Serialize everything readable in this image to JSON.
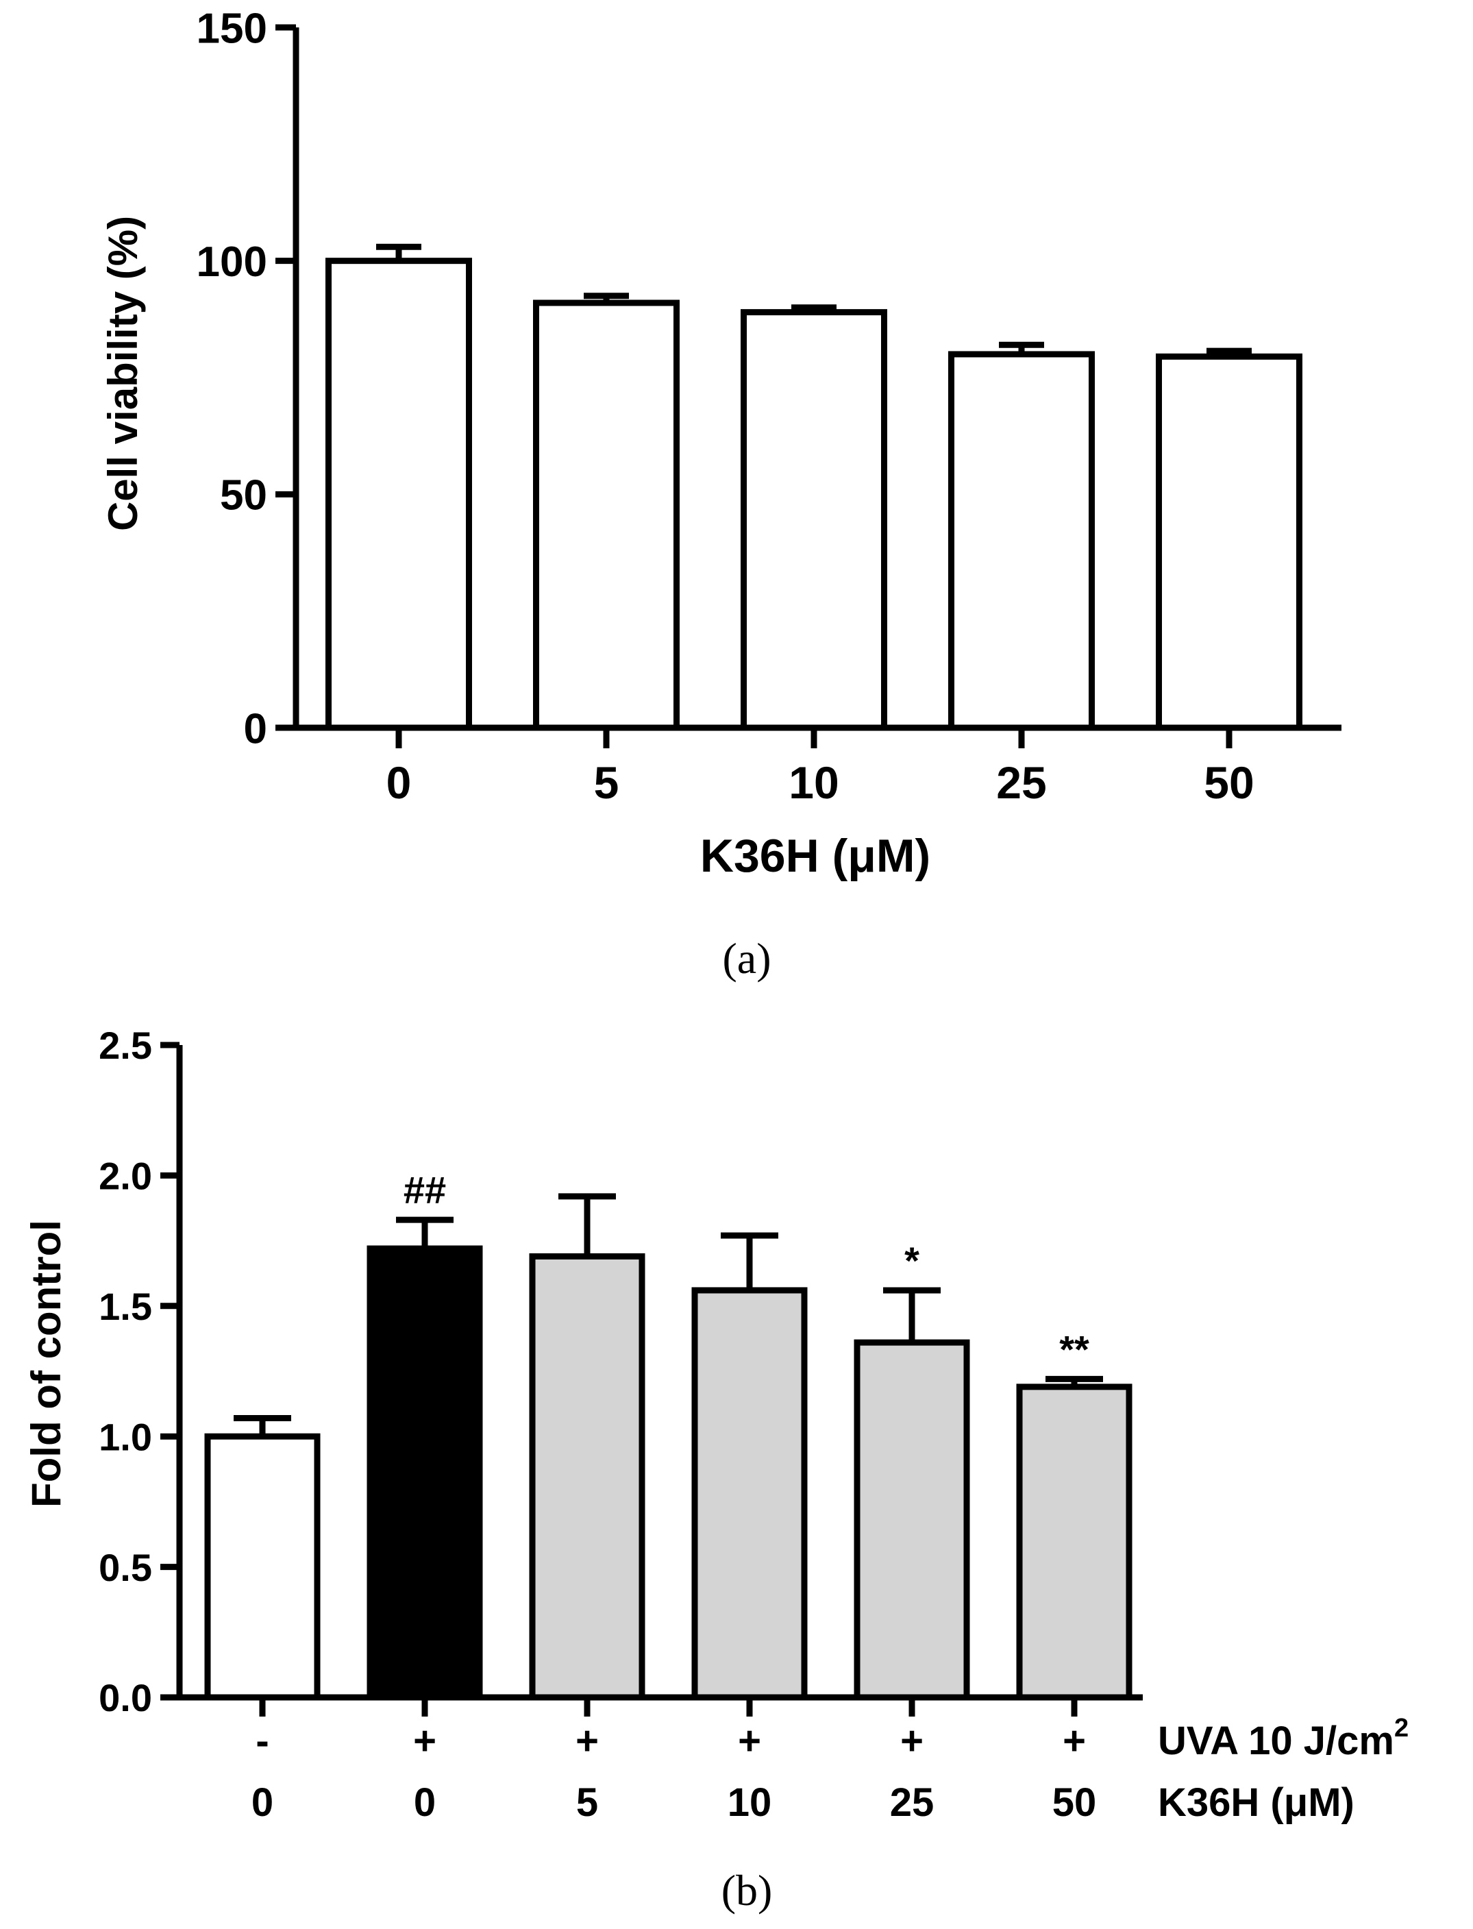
{
  "chart_data": [
    {
      "type": "bar",
      "panel_label": "(a)",
      "categories": [
        "0",
        "5",
        "10",
        "25",
        "50"
      ],
      "values": [
        100,
        91,
        89,
        80,
        79.5
      ],
      "errors": [
        3,
        1.5,
        1,
        2,
        1.2
      ],
      "ylabel": "Cell viability (%)",
      "xlabel": "K36H (μM)",
      "ylim": [
        0,
        150
      ],
      "yticks": [
        "0",
        "50",
        "100",
        "150"
      ],
      "grid": false,
      "bar_colors": [
        "#ffffff",
        "#ffffff",
        "#ffffff",
        "#ffffff",
        "#ffffff"
      ]
    },
    {
      "type": "bar",
      "panel_label": "(b)",
      "categories": [
        "0",
        "0",
        "5",
        "10",
        "25",
        "50"
      ],
      "uva_row": [
        "-",
        "+",
        "+",
        "+",
        "+",
        "+"
      ],
      "row_labels": {
        "uva": "UVA 10 J/cm",
        "uva_sup": "2",
        "k36h": "K36H (μM)"
      },
      "values": [
        1.0,
        1.72,
        1.69,
        1.56,
        1.36,
        1.19
      ],
      "errors": [
        0.07,
        0.11,
        0.23,
        0.21,
        0.2,
        0.03
      ],
      "annotations": [
        "",
        "##",
        "",
        "",
        "*",
        "**"
      ],
      "ylabel": "Fold of control",
      "ylim": [
        0,
        2.5
      ],
      "yticks": [
        "0.0",
        "0.5",
        "1.0",
        "1.5",
        "2.0",
        "2.5"
      ],
      "grid": false,
      "bar_colors": [
        "#ffffff",
        "#000000",
        "#d4d4d4",
        "#d4d4d4",
        "#d4d4d4",
        "#d4d4d4"
      ]
    }
  ]
}
